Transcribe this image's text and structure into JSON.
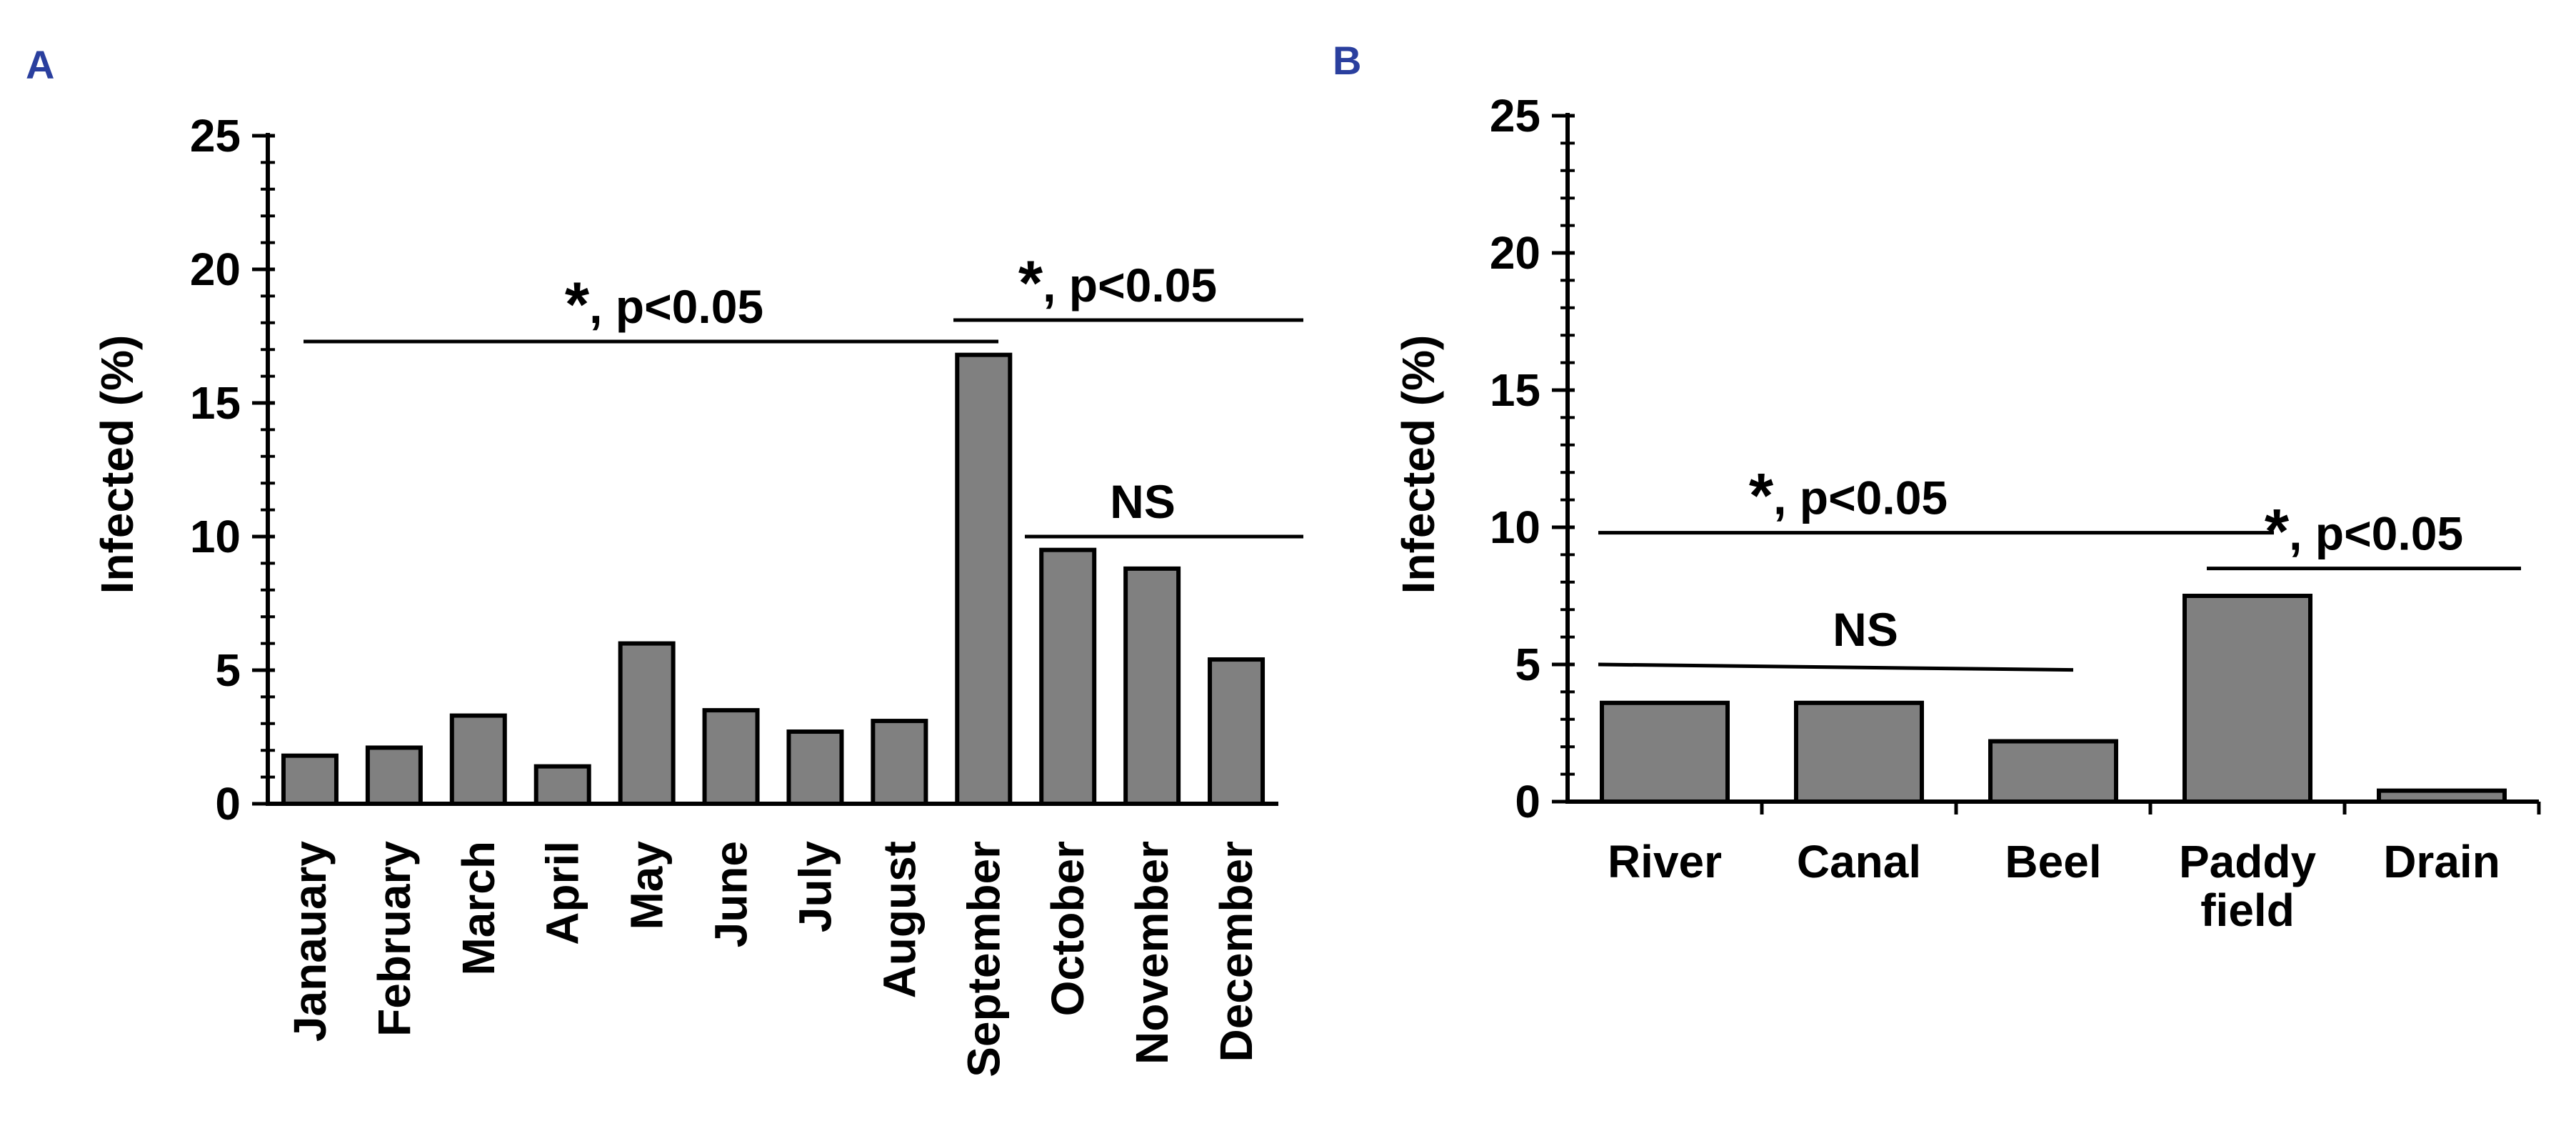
{
  "chart_data": [
    {
      "panel": "A",
      "type": "bar",
      "ylabel": "Infected (%)",
      "ylim": [
        0,
        25
      ],
      "yticks": [
        0,
        5,
        10,
        15,
        20,
        25
      ],
      "categories": [
        "Janauary",
        "February",
        "March",
        "April",
        "May",
        "June",
        "July",
        "August",
        "September",
        "October",
        "November",
        "December"
      ],
      "values": [
        1.8,
        2.1,
        3.3,
        1.4,
        6.0,
        3.5,
        2.7,
        3.1,
        16.8,
        9.5,
        8.8,
        5.4
      ],
      "annotations": [
        {
          "star": "*",
          "text": ", p<0.05",
          "from": 0,
          "to": 8,
          "y": 17.3
        },
        {
          "star": "*",
          "text": ", p<0.05",
          "from": 8,
          "to": 11,
          "y": 18.1
        },
        {
          "star": "",
          "text": "NS",
          "from": 9,
          "to": 11,
          "y": 10.0
        }
      ]
    },
    {
      "panel": "B",
      "type": "bar",
      "ylabel": "Infected (%)",
      "ylim": [
        0,
        25
      ],
      "yticks": [
        0,
        5,
        10,
        15,
        20,
        25
      ],
      "categories": [
        [
          "River"
        ],
        [
          "Canal"
        ],
        [
          "Beel"
        ],
        [
          "Paddy",
          "field"
        ],
        [
          "Drain"
        ]
      ],
      "values": [
        3.6,
        3.6,
        2.2,
        7.5,
        0.4
      ],
      "annotations": [
        {
          "star": "*",
          "text": ", p<0.05",
          "from": 0,
          "to": 3,
          "y": 9.8
        },
        {
          "star": "*",
          "text": ", p<0.05",
          "from": 3,
          "to": 4,
          "y": 8.5
        },
        {
          "star": "",
          "text": "NS",
          "from": 0,
          "to": 2,
          "y": 5.0
        }
      ]
    }
  ]
}
